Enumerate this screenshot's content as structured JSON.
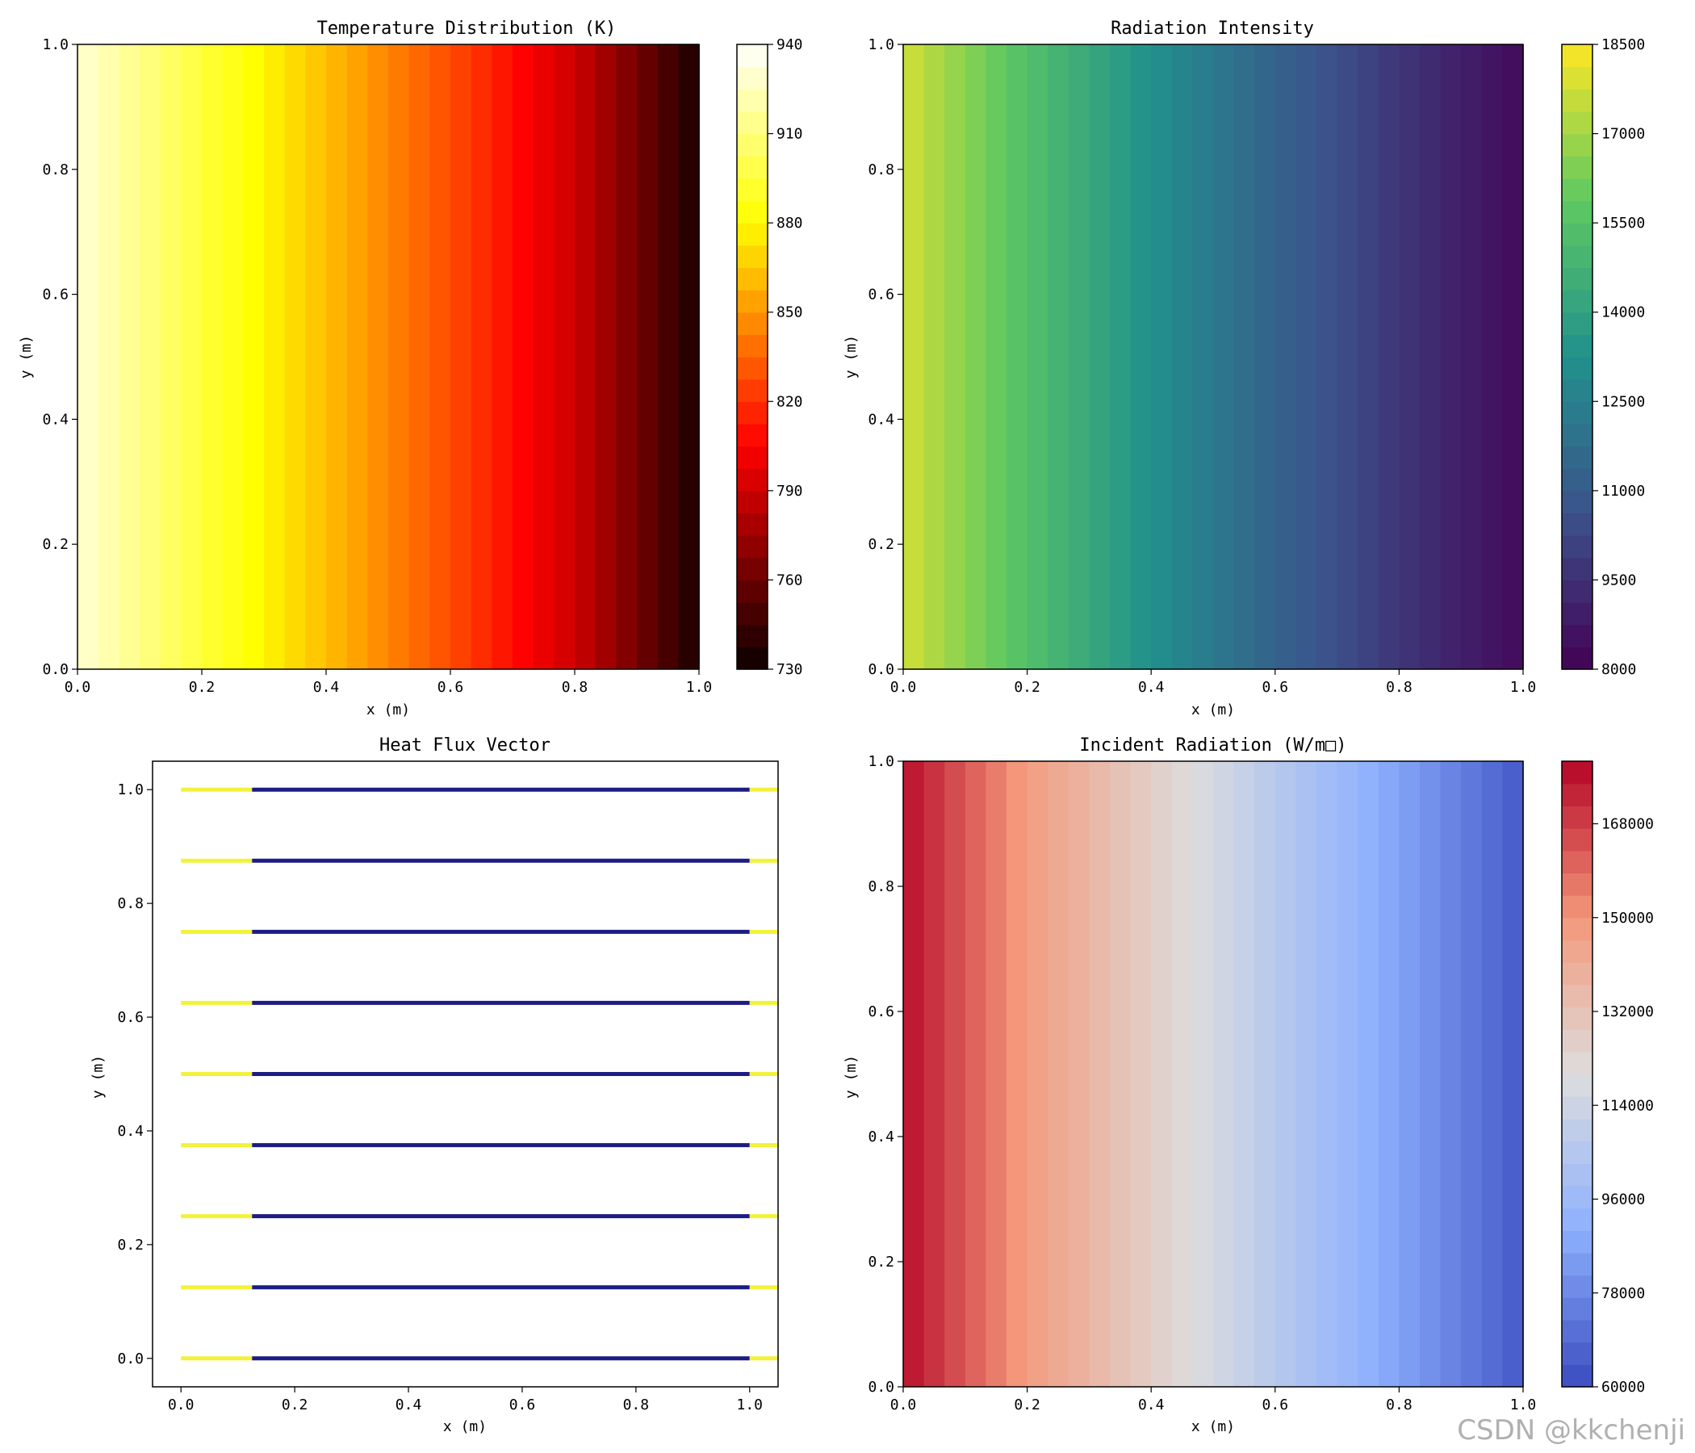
{
  "watermark": "CSDN @kkchenji",
  "chart_data": [
    {
      "type": "heatmap",
      "title": "Temperature Distribution (K)",
      "xlabel": "x (m)",
      "ylabel": "y (m)",
      "xlim": [
        0,
        1
      ],
      "ylim": [
        0,
        1
      ],
      "xticks": [
        "0.0",
        "0.2",
        "0.4",
        "0.6",
        "0.8",
        "1.0"
      ],
      "yticks": [
        "0.0",
        "0.2",
        "0.4",
        "0.6",
        "0.8",
        "1.0"
      ],
      "colormap": "hot",
      "colorbar": {
        "range": [
          730,
          940
        ],
        "ticks": [
          "730",
          "760",
          "790",
          "820",
          "850",
          "880",
          "910",
          "940"
        ]
      },
      "field": {
        "varies_along": "x",
        "x": [
          0.0,
          0.2,
          0.4,
          0.6,
          0.8,
          1.0
        ],
        "values": [
          930,
          895,
          862,
          828,
          790,
          735
        ]
      }
    },
    {
      "type": "heatmap",
      "title": "Radiation Intensity",
      "xlabel": "x (m)",
      "ylabel": "y (m)",
      "xlim": [
        0,
        1
      ],
      "ylim": [
        0,
        1
      ],
      "xticks": [
        "0.0",
        "0.2",
        "0.4",
        "0.6",
        "0.8",
        "1.0"
      ],
      "yticks": [
        "0.0",
        "0.2",
        "0.4",
        "0.6",
        "0.8",
        "1.0"
      ],
      "colormap": "viridis",
      "colorbar": {
        "range": [
          8000,
          18500
        ],
        "ticks": [
          "8000",
          "9500",
          "11000",
          "12500",
          "14000",
          "15500",
          "17000",
          "18500"
        ]
      },
      "field": {
        "varies_along": "x",
        "x": [
          0.0,
          0.2,
          0.4,
          0.6,
          0.8,
          1.0
        ],
        "values": [
          17800,
          15400,
          13200,
          11300,
          9700,
          8300
        ]
      }
    },
    {
      "type": "quiver",
      "title": "Heat Flux Vector",
      "xlabel": "x (m)",
      "ylabel": "y (m)",
      "xlim": [
        -0.05,
        1.05
      ],
      "ylim": [
        -0.05,
        1.05
      ],
      "xticks": [
        "0.0",
        "0.2",
        "0.4",
        "0.6",
        "0.8",
        "1.0"
      ],
      "yticks": [
        "0.0",
        "0.2",
        "0.4",
        "0.6",
        "0.8",
        "1.0"
      ],
      "rows_y": [
        0.0,
        0.125,
        0.25,
        0.375,
        0.5,
        0.625,
        0.75,
        0.875,
        1.0
      ],
      "segments": [
        {
          "x": [
            0.0,
            0.125
          ],
          "color": "#f2f23a"
        },
        {
          "x": [
            0.125,
            1.0
          ],
          "color": "#1c1c84"
        },
        {
          "x": [
            1.0,
            1.05
          ],
          "color": "#f2f23a"
        }
      ]
    },
    {
      "type": "heatmap",
      "title": "Incident Radiation (W/m□)",
      "xlabel": "x (m)",
      "ylabel": "y (m)",
      "xlim": [
        0,
        1
      ],
      "ylim": [
        0,
        1
      ],
      "xticks": [
        "0.0",
        "0.2",
        "0.4",
        "0.6",
        "0.8",
        "1.0"
      ],
      "yticks": [
        "0.0",
        "0.2",
        "0.4",
        "0.6",
        "0.8",
        "1.0"
      ],
      "colormap": "coolwarm",
      "colorbar": {
        "range": [
          60000,
          180000
        ],
        "ticks": [
          "60000",
          "78000",
          "96000",
          "114000",
          "132000",
          "150000",
          "168000"
        ]
      },
      "field": {
        "varies_along": "x",
        "x": [
          0.0,
          0.2,
          0.4,
          0.6,
          0.8,
          1.0
        ],
        "values": [
          178000,
          148000,
          127000,
          106000,
          86000,
          64000
        ]
      }
    }
  ]
}
